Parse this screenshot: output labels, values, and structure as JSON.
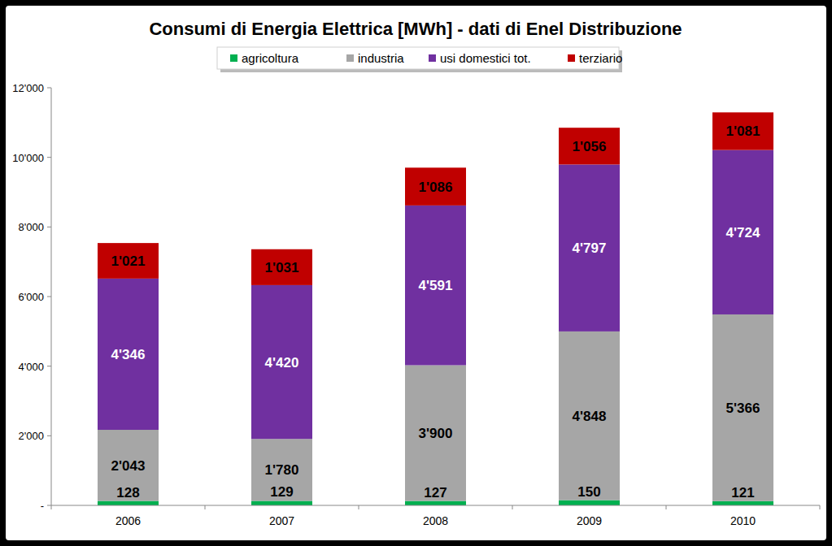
{
  "chart_data": {
    "type": "bar",
    "title": "Consumi di Energia Elettrica [MWh] - dati di Enel Distribuzione",
    "categories": [
      "2006",
      "2007",
      "2008",
      "2009",
      "2010"
    ],
    "stacked": true,
    "data_labels": true,
    "legend": "top",
    "grid": false,
    "ylim": [
      0,
      12000
    ],
    "yticks": [
      {
        "value": 0,
        "label": "-"
      },
      {
        "value": 2000,
        "label": "2'000"
      },
      {
        "value": 4000,
        "label": "4'000"
      },
      {
        "value": 6000,
        "label": "6'000"
      },
      {
        "value": 8000,
        "label": "8'000"
      },
      {
        "value": 10000,
        "label": "10'000"
      },
      {
        "value": 12000,
        "label": "12'000"
      }
    ],
    "series": [
      {
        "name": "agricoltura",
        "color": "#00b050",
        "values": [
          128,
          129,
          127,
          150,
          121
        ],
        "value_labels": [
          "128",
          "129",
          "127",
          "150",
          "121"
        ]
      },
      {
        "name": "industria",
        "color": "#a6a6a6",
        "values": [
          2043,
          1780,
          3900,
          4848,
          5366
        ],
        "value_labels": [
          "2'043",
          "1'780",
          "3'900",
          "4'848",
          "5'366"
        ]
      },
      {
        "name": "usi domestici tot.",
        "color": "#7030a0",
        "values": [
          4346,
          4420,
          4591,
          4797,
          4724
        ],
        "value_labels": [
          "4'346",
          "4'420",
          "4'591",
          "4'797",
          "4'724"
        ]
      },
      {
        "name": "terziario",
        "color": "#c00000",
        "values": [
          1021,
          1031,
          1086,
          1056,
          1081
        ],
        "value_labels": [
          "1'021",
          "1'031",
          "1'086",
          "1'056",
          "1'081"
        ]
      }
    ]
  }
}
